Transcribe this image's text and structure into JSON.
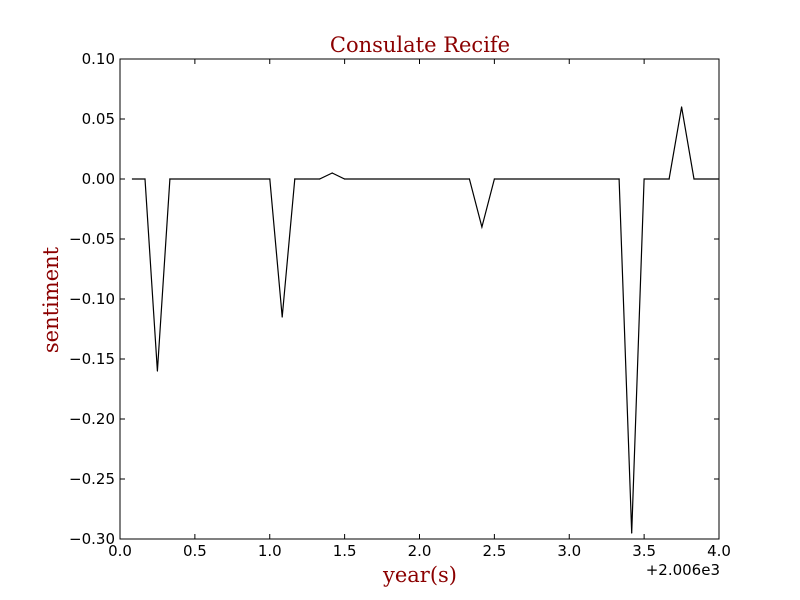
{
  "chart_data": {
    "type": "line",
    "title": "Consulate Recife",
    "xlabel": "year(s)",
    "ylabel": "sentiment",
    "x_offset_label": "+2.006e3",
    "xlim": [
      0.0,
      4.0
    ],
    "ylim": [
      -0.3,
      0.1
    ],
    "x_ticks": [
      0.0,
      0.5,
      1.0,
      1.5,
      2.0,
      2.5,
      3.0,
      3.5,
      4.0
    ],
    "x_tick_labels": [
      "0.0",
      "0.5",
      "1.0",
      "1.5",
      "2.0",
      "2.5",
      "3.0",
      "3.5",
      "4.0"
    ],
    "y_ticks": [
      0.1,
      0.05,
      0.0,
      -0.05,
      -0.1,
      -0.15,
      -0.2,
      -0.25,
      -0.3
    ],
    "y_tick_labels": [
      "0.10",
      "0.05",
      "0.00",
      "−0.05",
      "−0.10",
      "−0.15",
      "−0.20",
      "−0.25",
      "−0.30"
    ],
    "grid": false,
    "series": [
      {
        "color": "#000000",
        "points": [
          [
            0.083,
            0.0
          ],
          [
            0.167,
            0.0
          ],
          [
            0.25,
            -0.16
          ],
          [
            0.333,
            0.0
          ],
          [
            1.0,
            0.0
          ],
          [
            1.083,
            -0.115
          ],
          [
            1.167,
            0.0
          ],
          [
            1.333,
            0.0
          ],
          [
            1.417,
            0.005
          ],
          [
            1.5,
            0.0
          ],
          [
            2.333,
            0.0
          ],
          [
            2.417,
            -0.04
          ],
          [
            2.5,
            0.0
          ],
          [
            3.333,
            0.0
          ],
          [
            3.417,
            -0.295
          ],
          [
            3.5,
            0.0
          ],
          [
            3.667,
            0.0
          ],
          [
            3.75,
            0.06
          ],
          [
            3.833,
            0.0
          ],
          [
            4.0,
            0.0
          ]
        ]
      }
    ]
  },
  "colors": {
    "title": "#8b0000",
    "axis_label": "#8b0000",
    "line": "#000000"
  }
}
